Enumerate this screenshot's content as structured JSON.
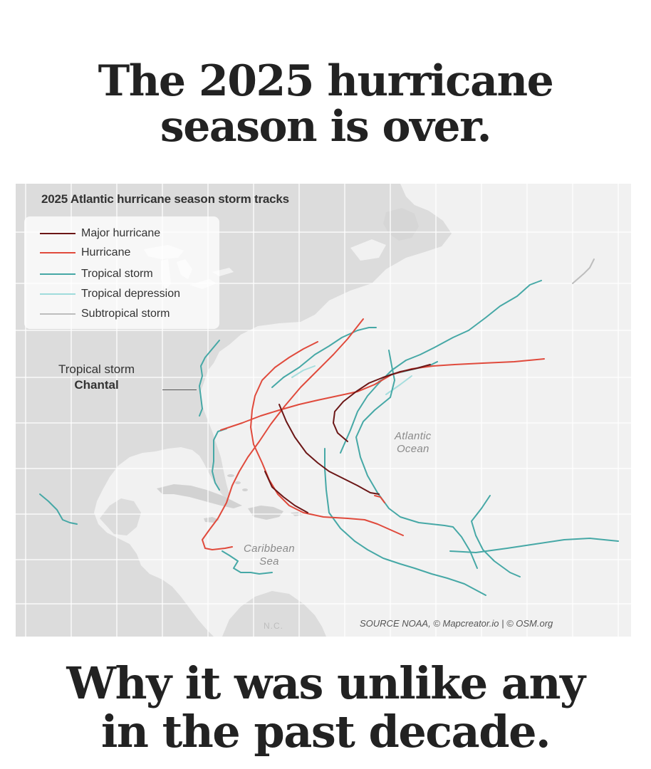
{
  "headline_top": {
    "line1": "The 2025 hurricane",
    "line2": "season is over."
  },
  "headline_bottom": {
    "line1": "Why it was unlike any",
    "line2": "in the past decade."
  },
  "map": {
    "title": "2025 Atlantic hurricane season storm tracks",
    "legend": [
      {
        "label": "Major hurricane",
        "color": "#6b1616"
      },
      {
        "label": "Hurricane",
        "color": "#e04a3c"
      },
      {
        "label": "Tropical storm",
        "color": "#46a8a6"
      },
      {
        "label": "Tropical depression",
        "color": "#9fdcdc"
      },
      {
        "label": "Subtropical storm",
        "color": "#bdbdbd"
      }
    ],
    "callout": {
      "line1": "Tropical storm",
      "line2": "Chantal"
    },
    "labels": {
      "atlantic_line1": "Atlantic",
      "atlantic_line2": "Ocean",
      "caribbean_line1": "Caribbean",
      "caribbean_line2": "Sea",
      "nc": "N.C."
    },
    "source": "SOURCE NOAA, © Mapcreator.io | © OSM.org",
    "colors": {
      "land": "#dcdcdc",
      "water": "#f2f2f2",
      "grid": "#ffffff"
    }
  }
}
